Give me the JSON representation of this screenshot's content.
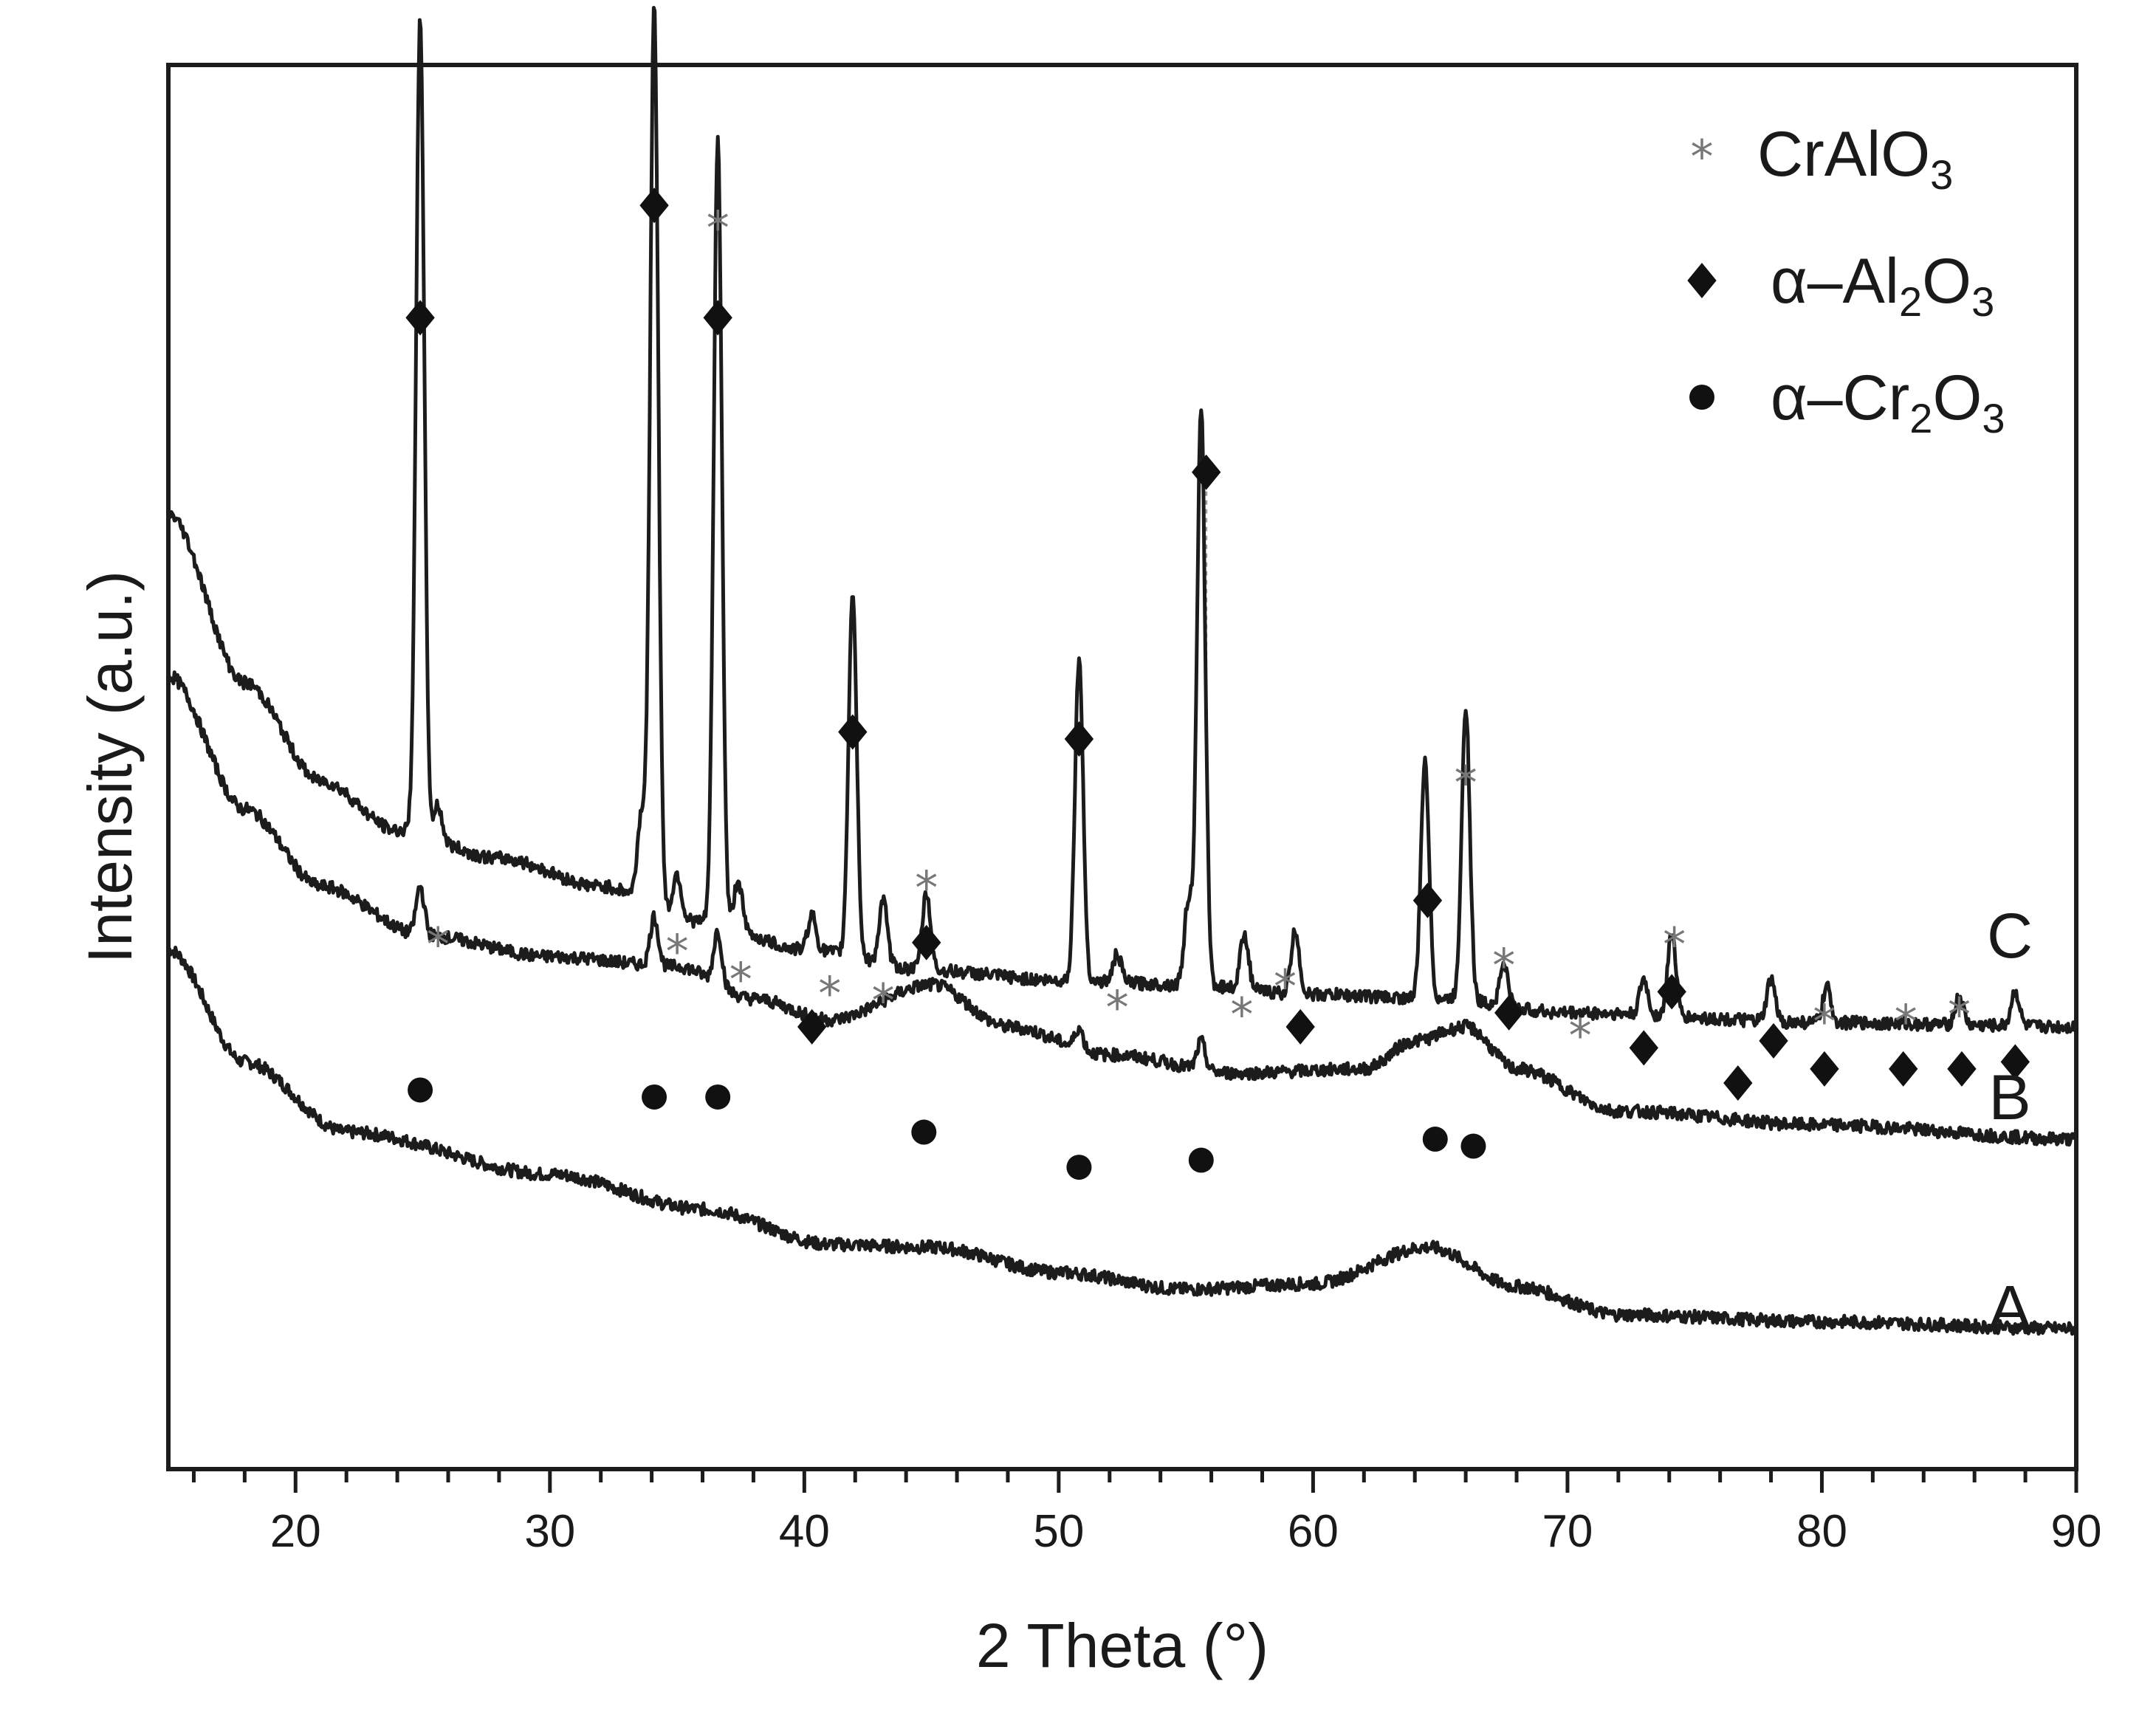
{
  "chart_data": {
    "type": "line",
    "title": "",
    "xlabel": "2 Theta (°)",
    "ylabel": "Intensity (a.u.)",
    "xlim": [
      15,
      90
    ],
    "ylim": [
      0,
      100
    ],
    "xticks": [
      20,
      30,
      40,
      50,
      60,
      70,
      80,
      90
    ],
    "xtick_labels": [
      "20",
      "30",
      "40",
      "50",
      "60",
      "70",
      "80",
      "90"
    ],
    "minor_xtick_step": 2,
    "yticks": [],
    "legend": [
      {
        "symbol": "*",
        "name": "CrAlO",
        "sub": "3",
        "full": "CrAlO3"
      },
      {
        "symbol": "◆",
        "name": "α–Al",
        "sub": "2",
        "name2": "O",
        "sub2": "3",
        "full": "α–Al2O3"
      },
      {
        "symbol": "●",
        "name": "α–Cr",
        "sub": "2",
        "name2": "O",
        "sub2": "3",
        "full": "α–Cr2O3"
      }
    ],
    "series": [
      {
        "name": "A",
        "label": "A",
        "baseline": [
          [
            15,
            37
          ],
          [
            18,
            29
          ],
          [
            22,
            24
          ],
          [
            30,
            21
          ],
          [
            36,
            18.5
          ],
          [
            41,
            16
          ],
          [
            45,
            15.8
          ],
          [
            50,
            14
          ],
          [
            55,
            12.8
          ],
          [
            60,
            13.2
          ],
          [
            64.5,
            15.8
          ],
          [
            68,
            13
          ],
          [
            72,
            11
          ],
          [
            80,
            10.5
          ],
          [
            90,
            10
          ]
        ],
        "peaks": []
      },
      {
        "name": "B",
        "label": "B",
        "baseline": [
          [
            15,
            56.5
          ],
          [
            18,
            47
          ],
          [
            21,
            41.5
          ],
          [
            25,
            38
          ],
          [
            30,
            36.5
          ],
          [
            35,
            35.8
          ],
          [
            38,
            33.5
          ],
          [
            41,
            32
          ],
          [
            45,
            34.5
          ],
          [
            48,
            31.5
          ],
          [
            52,
            29.5
          ],
          [
            57,
            28.2
          ],
          [
            62,
            28.5
          ],
          [
            64,
            30.5
          ],
          [
            66,
            31.5
          ],
          [
            68,
            28.5
          ],
          [
            72,
            25.5
          ],
          [
            80,
            24.5
          ],
          [
            90,
            23.5
          ]
        ],
        "peaks": [
          [
            24.9,
            3.5
          ],
          [
            34.1,
            3.5
          ],
          [
            36.6,
            3.8
          ],
          [
            50.8,
            1.5
          ],
          [
            55.6,
            2
          ]
        ]
      },
      {
        "name": "C",
        "label": "C",
        "baseline": [
          [
            15,
            68
          ],
          [
            18,
            56
          ],
          [
            21,
            49
          ],
          [
            24,
            45.5
          ],
          [
            28,
            43.5
          ],
          [
            32,
            41.5
          ],
          [
            36,
            39
          ],
          [
            40,
            37
          ],
          [
            45,
            35.5
          ],
          [
            50,
            34.8
          ],
          [
            55,
            34.5
          ],
          [
            60,
            33.8
          ],
          [
            65,
            33.5
          ],
          [
            70,
            32.5
          ],
          [
            80,
            31.8
          ],
          [
            90,
            31.5
          ]
        ],
        "peaks": [
          [
            24.9,
            58
          ],
          [
            25.6,
            2.5
          ],
          [
            33.6,
            6
          ],
          [
            34.1,
            64
          ],
          [
            35,
            3
          ],
          [
            36.6,
            56
          ],
          [
            37.4,
            3.5
          ],
          [
            40.3,
            2.5
          ],
          [
            41.9,
            26
          ],
          [
            43.1,
            4.5
          ],
          [
            44.8,
            5.5
          ],
          [
            50.8,
            23
          ],
          [
            52.3,
            2
          ],
          [
            55.1,
            6
          ],
          [
            55.6,
            41
          ],
          [
            57.3,
            4
          ],
          [
            59.3,
            4.5
          ],
          [
            64.4,
            17
          ],
          [
            66,
            21
          ],
          [
            67.5,
            3
          ],
          [
            73,
            2.5
          ],
          [
            74.1,
            6
          ],
          [
            78,
            3
          ],
          [
            80.2,
            2.5
          ],
          [
            85.4,
            2
          ],
          [
            87.6,
            2.5
          ]
        ]
      }
    ],
    "annotations": [
      {
        "phase": "α–Al2O3",
        "marker": "◆",
        "x": 24.9,
        "y": 82
      },
      {
        "phase": "α–Al2O3",
        "marker": "◆",
        "x": 34.1,
        "y": 90
      },
      {
        "phase": "α–Al2O3",
        "marker": "◆",
        "x": 36.6,
        "y": 82
      },
      {
        "phase": "α–Al2O3",
        "marker": "◆",
        "x": 41.9,
        "y": 52.5
      },
      {
        "phase": "α–Al2O3",
        "marker": "◆",
        "x": 44.8,
        "y": 37.5
      },
      {
        "phase": "α–Al2O3",
        "marker": "◆",
        "x": 50.8,
        "y": 52
      },
      {
        "phase": "α–Al2O3",
        "marker": "◆",
        "x": 55.8,
        "y": 71
      },
      {
        "phase": "α–Al2O3",
        "marker": "◆",
        "x": 40.3,
        "y": 31.5
      },
      {
        "phase": "α–Al2O3",
        "marker": "◆",
        "x": 59.5,
        "y": 31.5
      },
      {
        "phase": "α–Al2O3",
        "marker": "◆",
        "x": 64.5,
        "y": 40.5
      },
      {
        "phase": "α–Al2O3",
        "marker": "◆",
        "x": 67.7,
        "y": 32.5
      },
      {
        "phase": "α–Al2O3",
        "marker": "◆",
        "x": 73,
        "y": 30
      },
      {
        "phase": "α–Al2O3",
        "marker": "◆",
        "x": 74.1,
        "y": 34
      },
      {
        "phase": "α–Al2O3",
        "marker": "◆",
        "x": 76.7,
        "y": 27.5
      },
      {
        "phase": "α–Al2O3",
        "marker": "◆",
        "x": 78.1,
        "y": 30.5
      },
      {
        "phase": "α–Al2O3",
        "marker": "◆",
        "x": 80.1,
        "y": 28.5
      },
      {
        "phase": "α–Al2O3",
        "marker": "◆",
        "x": 83.2,
        "y": 28.5
      },
      {
        "phase": "α–Al2O3",
        "marker": "◆",
        "x": 85.5,
        "y": 28.5
      },
      {
        "phase": "α–Al2O3",
        "marker": "◆",
        "x": 87.6,
        "y": 29
      },
      {
        "phase": "CrAlO3",
        "marker": "*",
        "x": 36.6,
        "y": 88.5
      },
      {
        "phase": "CrAlO3",
        "marker": "*",
        "x": 25.6,
        "y": 37.5
      },
      {
        "phase": "CrAlO3",
        "marker": "*",
        "x": 35,
        "y": 37
      },
      {
        "phase": "CrAlO3",
        "marker": "*",
        "x": 37.5,
        "y": 35
      },
      {
        "phase": "CrAlO3",
        "marker": "*",
        "x": 41,
        "y": 34
      },
      {
        "phase": "CrAlO3",
        "marker": "*",
        "x": 43.1,
        "y": 33.5
      },
      {
        "phase": "CrAlO3",
        "marker": "*",
        "x": 44.8,
        "y": 41.5
      },
      {
        "phase": "CrAlO3",
        "marker": "*",
        "x": 52.3,
        "y": 33
      },
      {
        "phase": "CrAlO3",
        "marker": "*",
        "x": 57.2,
        "y": 32.5
      },
      {
        "phase": "CrAlO3",
        "marker": "*",
        "x": 58.9,
        "y": 34.5
      },
      {
        "phase": "CrAlO3",
        "marker": "*",
        "x": 66,
        "y": 49
      },
      {
        "phase": "CrAlO3",
        "marker": "*",
        "x": 67.5,
        "y": 36
      },
      {
        "phase": "CrAlO3",
        "marker": "*",
        "x": 70.5,
        "y": 31
      },
      {
        "phase": "CrAlO3",
        "marker": "*",
        "x": 74.2,
        "y": 37.5
      },
      {
        "phase": "CrAlO3",
        "marker": "*",
        "x": 80.1,
        "y": 32
      },
      {
        "phase": "CrAlO3",
        "marker": "*",
        "x": 83.3,
        "y": 32
      },
      {
        "phase": "CrAlO3",
        "marker": "*",
        "x": 85.4,
        "y": 32.5
      },
      {
        "phase": "α–Cr2O3",
        "marker": "●",
        "x": 24.9,
        "y": 27
      },
      {
        "phase": "α–Cr2O3",
        "marker": "●",
        "x": 34.1,
        "y": 26.5
      },
      {
        "phase": "α–Cr2O3",
        "marker": "●",
        "x": 36.6,
        "y": 26.5
      },
      {
        "phase": "α–Cr2O3",
        "marker": "●",
        "x": 44.7,
        "y": 24
      },
      {
        "phase": "α–Cr2O3",
        "marker": "●",
        "x": 50.8,
        "y": 21.5
      },
      {
        "phase": "α–Cr2O3",
        "marker": "●",
        "x": 55.6,
        "y": 22
      },
      {
        "phase": "α–Cr2O3",
        "marker": "●",
        "x": 64.8,
        "y": 23.5
      },
      {
        "phase": "α–Cr2O3",
        "marker": "●",
        "x": 66.3,
        "y": 23
      }
    ]
  }
}
